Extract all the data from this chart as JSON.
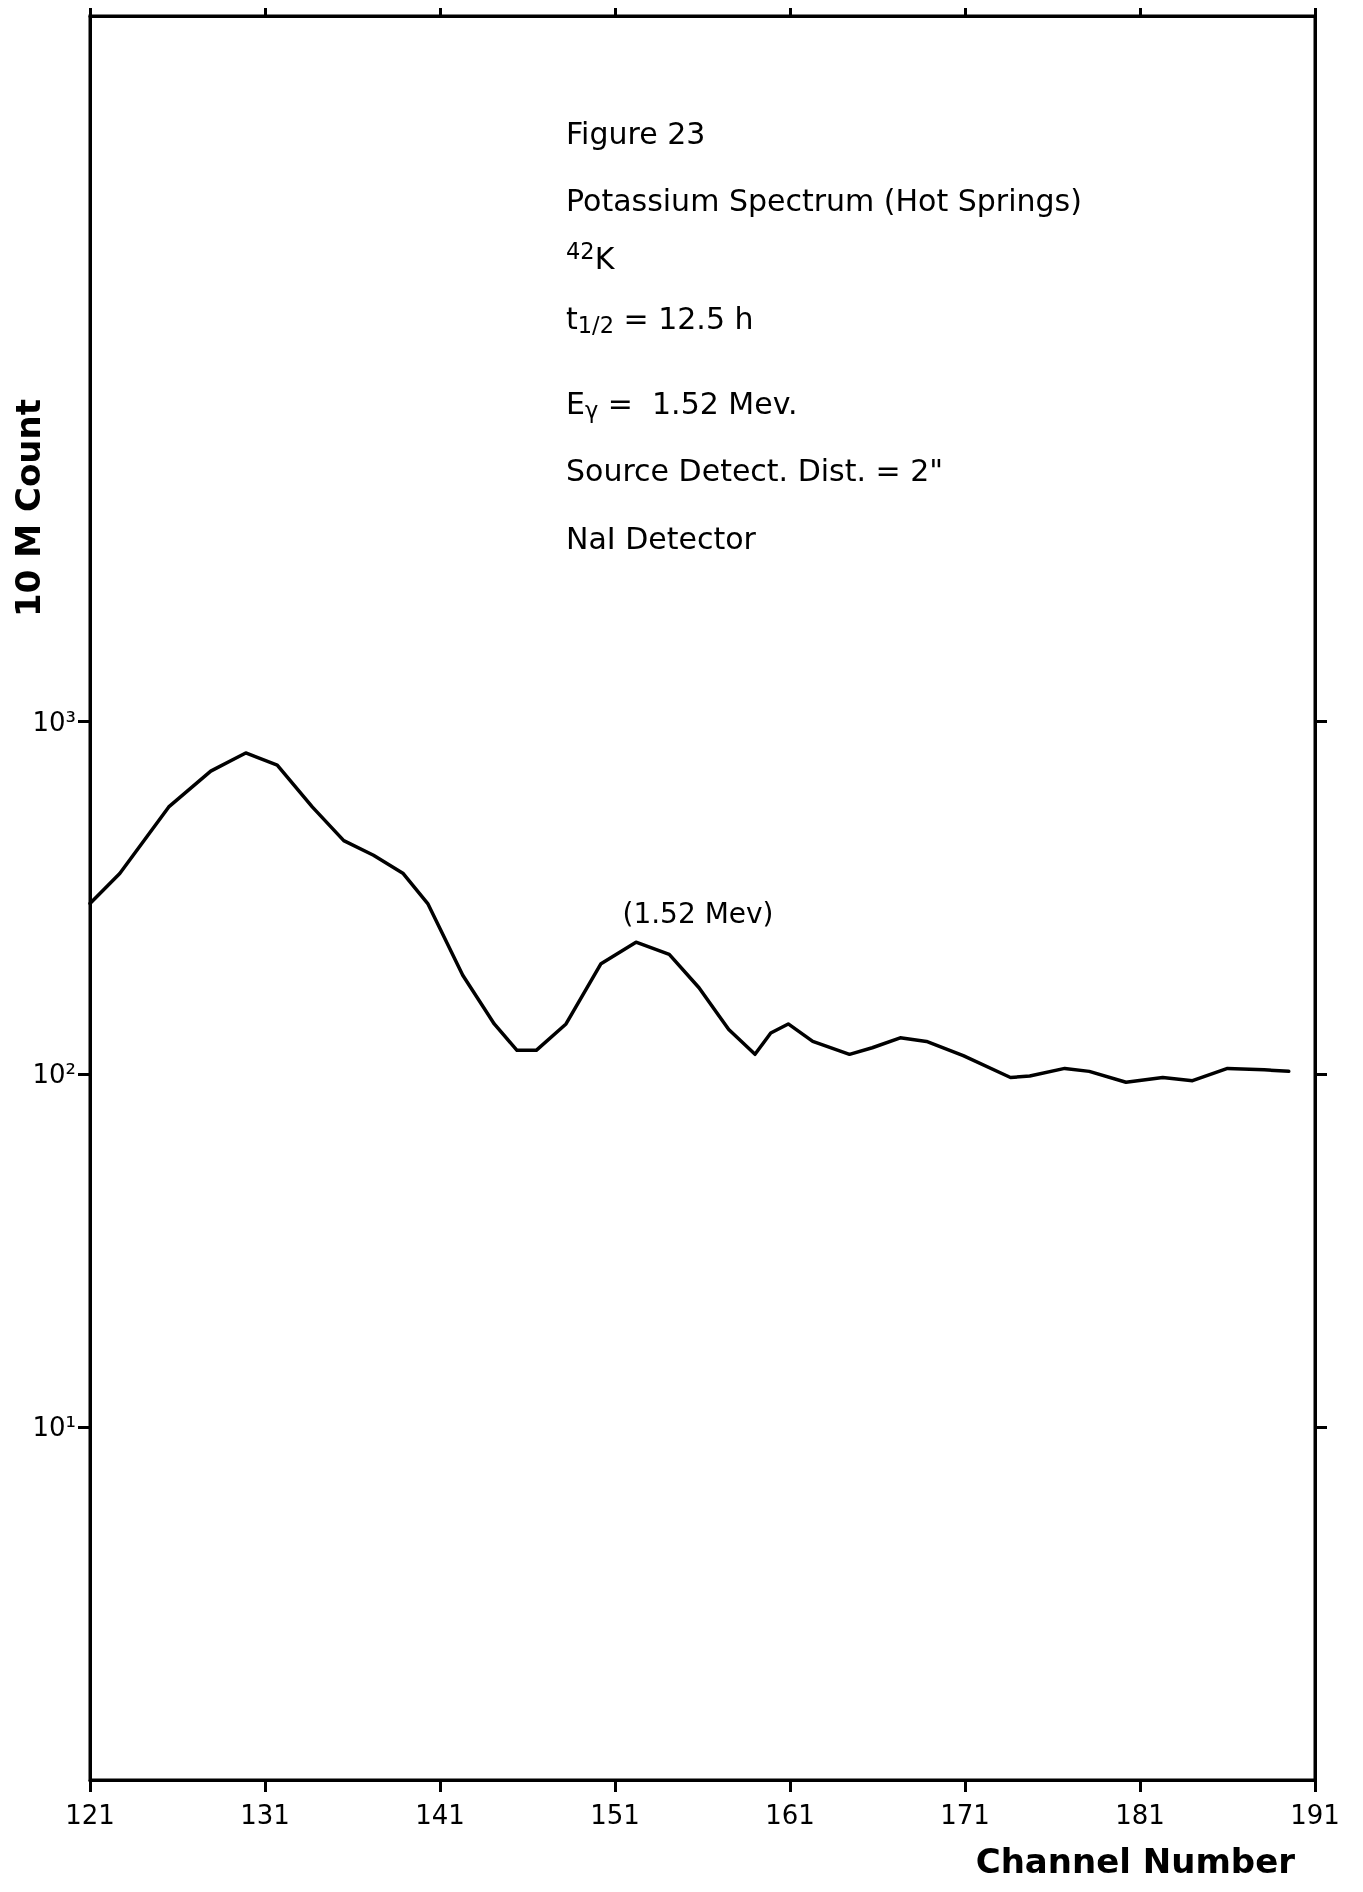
{
  "chart_data": {
    "type": "line",
    "xlabel": "Channel Number",
    "ylabel": "10 M Count",
    "annotations": [
      "Figure 23",
      "Potassium Spectrum (Hot Springs)",
      "$^{42}$K",
      "t$_{1/2}$ = 12.5 h",
      "E$_{γ}$ =  1.52 Mev.",
      "Source Detect. Dist. = 2\"",
      "NaI Detector",
      "(1.52 Mev)"
    ],
    "series": [
      {
        "color": "#000000",
        "x": [
          121,
          122.7,
          125.5,
          127.9,
          129.9,
          131.7,
          133.7,
          135.5,
          137.2,
          138.9,
          140.3,
          142.3,
          144.1,
          145.4,
          146.5,
          148.2,
          150.2,
          152.2,
          154.1,
          155.8,
          157.5,
          159.0,
          159.9,
          160.9,
          162.3,
          164.4,
          165.7,
          167.3,
          168.8,
          170.9,
          173.6,
          174.7,
          176.7,
          178.1,
          180.2,
          182.3,
          184.0,
          186.0,
          188.1,
          189.5
        ],
        "values": [
          305,
          371,
          573,
          724,
          815,
          753,
          573,
          460,
          418,
          371,
          305,
          191,
          139,
          117,
          117,
          139,
          206,
          237,
          219,
          176,
          134,
          114,
          131,
          139,
          124,
          114,
          119,
          127,
          124,
          113,
          98,
          99,
          104,
          102,
          95,
          98,
          96,
          104,
          103,
          102
        ]
      }
    ],
    "log": "y",
    "xlim": [
      121,
      191
    ],
    "xticks": [
      121,
      131,
      141,
      151,
      161,
      171,
      181,
      191
    ],
    "ylim": [
      1,
      100000
    ],
    "yticks": [
      {
        "value": 10,
        "label": "10¹"
      },
      {
        "value": 100,
        "label": "10²"
      },
      {
        "value": 1000,
        "label": "10³"
      }
    ],
    "grid": false,
    "line_style": "solid",
    "marker": "none"
  }
}
